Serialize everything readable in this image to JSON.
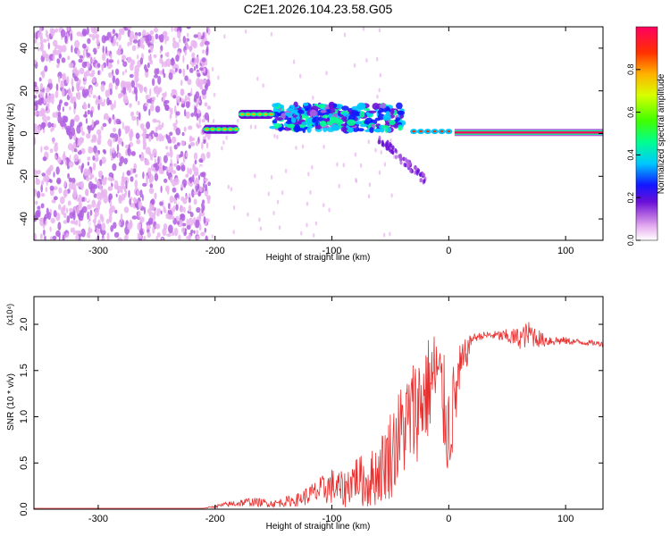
{
  "title": "C2E1.2026.104.23.58.G05",
  "chart_data": [
    {
      "type": "heatmap",
      "title": "C2E1.2026.104.23.58.G05",
      "xlabel": "Height of straight line (km)",
      "ylabel": "Frequency (Hz)",
      "xlim": [
        -355,
        132
      ],
      "ylim": [
        -50,
        50
      ],
      "xticks": [
        -300,
        -200,
        -100,
        0,
        100
      ],
      "xtick_labels": [
        "-300",
        "-200",
        "-100",
        "0",
        "100"
      ],
      "yticks": [
        -40,
        -20,
        0,
        20,
        40
      ],
      "ytick_labels": [
        "-40",
        "-20",
        "0",
        "20",
        "40"
      ],
      "colorbar": {
        "label": "Normalized spectral amplitude",
        "range": [
          0.0,
          1.0
        ],
        "ticks": [
          0.0,
          0.2,
          0.4,
          0.6,
          0.8
        ],
        "tick_labels": [
          "0.0",
          "0.2",
          "0.4",
          "0.6",
          "0.8"
        ],
        "colormap": [
          "#ffffff",
          "#e8b4f0",
          "#b060e0",
          "#6a0fd8",
          "#1018ff",
          "#00c8ff",
          "#00ff90",
          "#40ff00",
          "#d8ff00",
          "#ffb000",
          "#ff3000",
          "#ff0060"
        ]
      },
      "features": [
        {
          "name": "noise",
          "x_range": [
            -355,
            -205
          ],
          "freq_range": [
            -50,
            50
          ],
          "amplitude": 0.15
        },
        {
          "name": "carrier-segment-1",
          "x_range": [
            -210,
            -180
          ],
          "freq": 2,
          "amplitude": 0.85
        },
        {
          "name": "carrier-segment-2",
          "x_range": [
            -180,
            -150
          ],
          "freq": 9,
          "amplitude": 0.85
        },
        {
          "name": "scintillation",
          "x_range": [
            -150,
            -40
          ],
          "freq": 3,
          "amplitude": 0.5
        },
        {
          "name": "carrier-steady",
          "x_range": [
            5,
            132
          ],
          "freq": 0.5,
          "amplitude": 1.0
        }
      ]
    },
    {
      "type": "line",
      "xlabel": "Height of straight line (km)",
      "ylabel": "SNR (10 * v/v)",
      "y_multiplier": "(x10⁴)",
      "xlim": [
        -355,
        132
      ],
      "ylim": [
        0,
        2.3
      ],
      "xticks": [
        -300,
        -200,
        -100,
        0,
        100
      ],
      "xtick_labels": [
        "-300",
        "-200",
        "-100",
        "0",
        "100"
      ],
      "yticks": [
        0.0,
        0.5,
        1.0,
        1.5,
        2.0
      ],
      "ytick_labels": [
        "0.0",
        "0.5",
        "1.0",
        "1.5",
        "2.0"
      ],
      "color": "#e8302f",
      "x": [
        -355,
        -300,
        -250,
        -210,
        -190,
        -170,
        -150,
        -130,
        -110,
        -100,
        -90,
        -80,
        -70,
        -60,
        -50,
        -40,
        -30,
        -20,
        -10,
        0,
        10,
        20,
        30,
        40,
        60,
        70,
        80,
        100,
        120,
        132
      ],
      "y": [
        0.01,
        0.01,
        0.01,
        0.01,
        0.05,
        0.08,
        0.06,
        0.1,
        0.2,
        0.25,
        0.2,
        0.35,
        0.28,
        0.4,
        0.6,
        0.85,
        1.05,
        1.25,
        1.5,
        0.85,
        1.5,
        1.85,
        1.88,
        1.88,
        1.85,
        1.9,
        1.83,
        1.82,
        1.8,
        1.79
      ],
      "noise": [
        0,
        0,
        0,
        0,
        0.03,
        0.05,
        0.04,
        0.07,
        0.15,
        0.2,
        0.2,
        0.25,
        0.3,
        0.35,
        0.5,
        0.55,
        0.6,
        0.6,
        0.5,
        0.6,
        0.3,
        0.05,
        0.04,
        0.05,
        0.12,
        0.15,
        0.08,
        0.04,
        0.03,
        0.03
      ]
    }
  ]
}
